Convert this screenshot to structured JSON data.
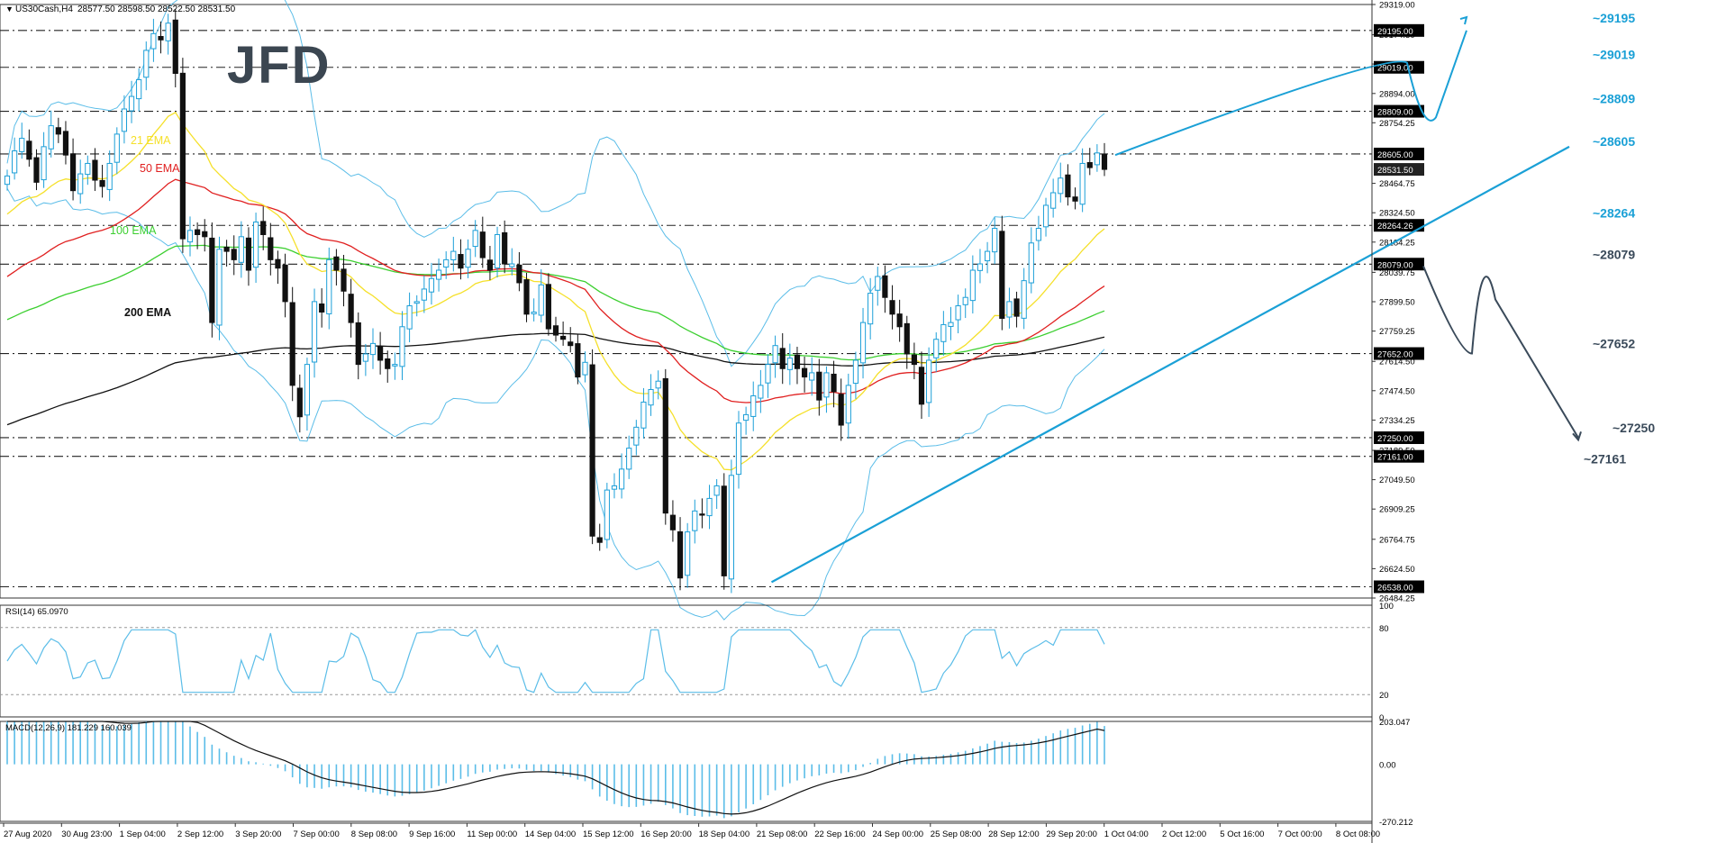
{
  "header": {
    "symbol": "US30Cash,H4",
    "ohlc": "28577.50 28598.50 28522.50 28531.50"
  },
  "logo": "JFD",
  "colors": {
    "bull": "#1c9fd8",
    "bear": "#111111",
    "ema21": "#f5e02a",
    "ema50": "#e02020",
    "ema100": "#3ccf30",
    "ema200": "#111111",
    "bands": "#5bbde8",
    "target_up": "#1aa0d6",
    "target_down": "#3a4a5a",
    "level_line": "#222222"
  },
  "chart_data": [
    {
      "type": "candlestick",
      "name": "main",
      "ylim": [
        26484.25,
        29319.0
      ],
      "y_axis_ticks": [
        "29319.00",
        "29174.50",
        "29034.75",
        "28894.00",
        "28754.25",
        "28464.75",
        "28324.50",
        "28184.25",
        "28039.75",
        "27899.50",
        "27759.25",
        "27614.50",
        "27474.50",
        "27334.25",
        "27189.50",
        "27049.50",
        "26909.25",
        "26764.75",
        "26624.50",
        "26484.25"
      ],
      "x_axis_labels": [
        "27 Aug 2020",
        "30 Aug 23:00",
        "1 Sep 04:00",
        "2 Sep 12:00",
        "3 Sep 20:00",
        "7 Sep 00:00",
        "8 Sep 08:00",
        "9 Sep 16:00",
        "11 Sep 00:00",
        "14 Sep 04:00",
        "15 Sep 12:00",
        "16 Sep 20:00",
        "18 Sep 04:00",
        "21 Sep 08:00",
        "22 Sep 16:00",
        "24 Sep 00:00",
        "25 Sep 08:00",
        "28 Sep 12:00",
        "29 Sep 20:00",
        "1 Oct 04:00",
        "2 Oct 12:00",
        "5 Oct 16:00",
        "7 Oct 00:00",
        "8 Oct 08:00"
      ],
      "price_boxes": [
        "29195.00",
        "29019.00",
        "28809.00",
        "28605.00",
        "28531.50",
        "28264.26",
        "28079.00",
        "27652.00",
        "27250.00",
        "27161.00",
        "26538.00"
      ],
      "levels": [
        {
          "label": "~29195",
          "value": 29195,
          "color": "#1aa0d6"
        },
        {
          "label": "~29019",
          "value": 29019,
          "color": "#1aa0d6"
        },
        {
          "label": "~28809",
          "value": 28809,
          "color": "#1aa0d6"
        },
        {
          "label": "~28605",
          "value": 28605,
          "color": "#1aa0d6"
        },
        {
          "label": "~28264",
          "value": 28264,
          "color": "#1aa0d6"
        },
        {
          "label": "~28079",
          "value": 28079,
          "color": "#3a4a5a"
        },
        {
          "label": "~27652",
          "value": 27652,
          "color": "#3a4a5a"
        },
        {
          "label": "~27250",
          "value": 27250,
          "color": "#3a4a5a"
        },
        {
          "label": "~27161",
          "value": 27161,
          "color": "#3a4a5a"
        },
        {
          "label": "",
          "value": 26538,
          "color": "#3a4a5a"
        }
      ],
      "series_labels": [
        {
          "label": "21 EMA",
          "color": "#f5e02a"
        },
        {
          "label": "50 EMA",
          "color": "#e02020"
        },
        {
          "label": "100 EMA",
          "color": "#3ccf30"
        },
        {
          "label": "200 EMA",
          "color": "#111111"
        }
      ],
      "close": [
        28500,
        28620,
        28680,
        28580,
        28470,
        28640,
        28740,
        28700,
        28600,
        28430,
        28510,
        28560,
        28480,
        28450,
        28560,
        28700,
        28820,
        28880,
        28960,
        29100,
        29180,
        29150,
        29230,
        28990,
        28200,
        28240,
        28220,
        28210,
        27800,
        28150,
        28140,
        28100,
        28210,
        28050,
        28280,
        28220,
        28100,
        28060,
        27900,
        27500,
        27350,
        27600,
        27900,
        27850,
        28100,
        28050,
        27950,
        27800,
        27600,
        27650,
        27700,
        27620,
        27580,
        27600,
        27780,
        27880,
        27900,
        27960,
        28010,
        28050,
        28100,
        28140,
        28060,
        28150,
        28240,
        28110,
        28050,
        28220,
        28080,
        28080,
        27990,
        27840,
        27850,
        27980,
        27770,
        27740,
        27720,
        27690,
        27540,
        27610,
        26780,
        26750,
        27000,
        27020,
        27100,
        27200,
        27300,
        27420,
        27480,
        27520,
        26890,
        26810,
        26580,
        26800,
        26900,
        26880,
        26960,
        27020,
        26590,
        27070,
        27320,
        27360,
        27450,
        27500,
        27600,
        27690,
        27580,
        27630,
        27580,
        27540,
        27560,
        27430,
        27560,
        27470,
        27310,
        27500,
        27620,
        27800,
        27940,
        28020,
        27920,
        27840,
        27780,
        27650,
        27600,
        27410,
        27620,
        27720,
        27790,
        27800,
        27880,
        27920,
        28050,
        28080,
        28140,
        28250,
        27820,
        27900,
        27830,
        28000,
        28180,
        28250,
        28360,
        28420,
        28490,
        28400,
        28380,
        28560,
        28540,
        28610,
        28531.5
      ],
      "ema21_end": 28250,
      "ema50_end": 28030,
      "ema100_end": 27830,
      "ema200_end": 27730
    },
    {
      "type": "line",
      "name": "rsi",
      "title": "RSI(14) 65.0970",
      "ylim": [
        0,
        100
      ],
      "y_axis_ticks": [
        "100",
        "80",
        "20",
        "0"
      ],
      "levels": [
        80,
        20
      ],
      "last": 65.097
    },
    {
      "type": "histogram+line",
      "name": "macd",
      "title": "MACD(12,26,9) 181.229 160.039",
      "ylim": [
        -270.212,
        203.047
      ],
      "y_axis_ticks": [
        "203.047",
        "0.00",
        "-270.212"
      ],
      "last_main": 181.229,
      "last_signal": 160.039
    }
  ]
}
